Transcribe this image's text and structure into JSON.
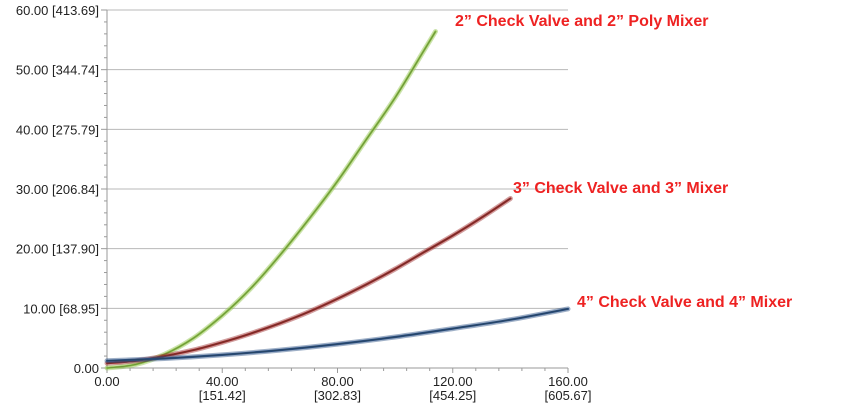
{
  "chart_data": {
    "type": "line",
    "title": "",
    "xlabel": "",
    "ylabel": "",
    "xlim": [
      0,
      160
    ],
    "ylim": [
      0,
      60
    ],
    "grid": "horizontal",
    "legend": "inline-labels",
    "x_ticks": [
      {
        "value": 0,
        "label": "0.00",
        "sublabel": ""
      },
      {
        "value": 40,
        "label": "40.00",
        "sublabel": "[151.42]"
      },
      {
        "value": 80,
        "label": "80.00",
        "sublabel": "[302.83]"
      },
      {
        "value": 120,
        "label": "120.00",
        "sublabel": "[454.25]"
      },
      {
        "value": 160,
        "label": "160.00",
        "sublabel": "[605.67]"
      }
    ],
    "y_ticks": [
      {
        "value": 0,
        "label": "0.00"
      },
      {
        "value": 10,
        "label": "10.00 [68.95]"
      },
      {
        "value": 20,
        "label": "20.00 [137.90]"
      },
      {
        "value": 30,
        "label": "30.00 [206.84]"
      },
      {
        "value": 40,
        "label": "40.00 [275.79]"
      },
      {
        "value": 50,
        "label": "50.00 [344.74]"
      },
      {
        "value": 60,
        "label": "60.00 [413.69]"
      }
    ],
    "series": [
      {
        "name": "2” Check Valve and 2” Poly Mixer",
        "color": "#8fc14a",
        "label_color": "#ee2222",
        "x": [
          0,
          10,
          20,
          30,
          40,
          50,
          60,
          70,
          80,
          90,
          100,
          110,
          114
        ],
        "y": [
          0.0,
          0.6,
          2.3,
          5.0,
          8.8,
          13.4,
          18.9,
          24.9,
          31.3,
          38.3,
          45.3,
          53.2,
          56.4
        ]
      },
      {
        "name": "3” Check Valve and 3” Mixer",
        "color": "#9b2d2d",
        "label_color": "#ee2222",
        "x": [
          0,
          10,
          20,
          30,
          40,
          50,
          60,
          70,
          80,
          90,
          100,
          110,
          120,
          130,
          140
        ],
        "y": [
          0.8,
          1.2,
          2.0,
          3.0,
          4.3,
          5.8,
          7.5,
          9.4,
          11.6,
          14.0,
          16.6,
          19.4,
          22.2,
          25.2,
          28.4
        ]
      },
      {
        "name": "4” Check Valve and 4” Mixer",
        "color": "#2b4f82",
        "label_color": "#ee2222",
        "x": [
          0,
          20,
          40,
          60,
          80,
          100,
          120,
          140,
          160
        ],
        "y": [
          1.2,
          1.6,
          2.2,
          3.0,
          4.0,
          5.2,
          6.6,
          8.1,
          9.9
        ]
      }
    ]
  }
}
